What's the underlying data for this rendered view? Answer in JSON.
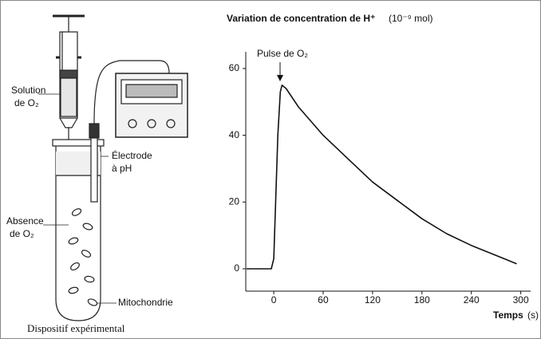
{
  "diagram": {
    "labels": [
      {
        "lines": [
          "Solution",
          "de O₂"
        ]
      },
      {
        "lines": [
          "Électrode",
          "à pH"
        ]
      },
      {
        "lines": [
          "Absence",
          "de O₂"
        ]
      },
      {
        "lines": [
          "Mitochondrie"
        ]
      }
    ],
    "caption": "Dispositif expérimental"
  },
  "chart_data": {
    "type": "line",
    "title": "Variation de concentration de H⁺",
    "y_unit": "(10⁻⁹ mol)",
    "x_label": "Temps",
    "x_unit": "(s)",
    "annotation": "Pulse de O₂",
    "x": [
      -33,
      -3,
      0,
      5,
      8,
      10,
      15,
      30,
      60,
      90,
      120,
      150,
      180,
      210,
      240,
      270,
      295
    ],
    "values": [
      0,
      0,
      3,
      40,
      53,
      55,
      54,
      48.5,
      40,
      33,
      26,
      20.5,
      15,
      10.5,
      7,
      4,
      1.5
    ],
    "color": "#111111",
    "xlim": [
      -34,
      312
    ],
    "ylim": [
      -6.7,
      65
    ],
    "xticks": [
      0,
      60,
      120,
      180,
      240,
      300
    ],
    "yticks": [
      0,
      20,
      40,
      60
    ]
  }
}
